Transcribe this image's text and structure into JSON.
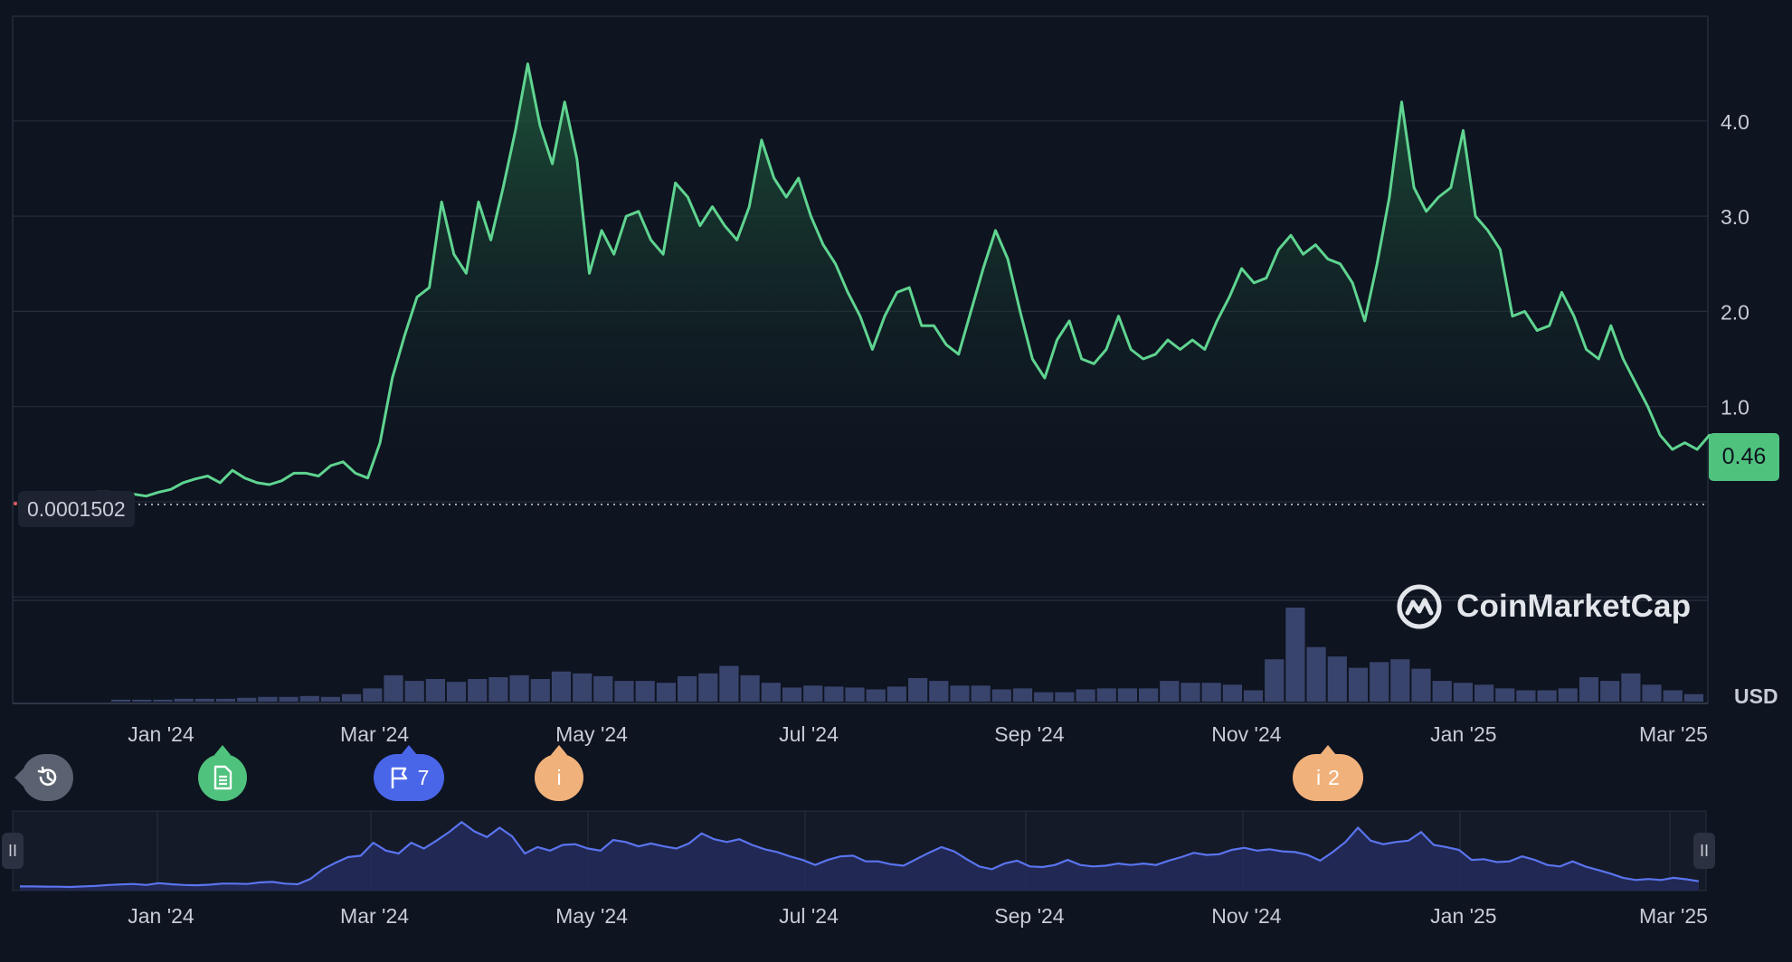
{
  "chart_data": {
    "type": "area",
    "x_tick_labels": [
      "Jan '24",
      "Mar '24",
      "May '24",
      "Jul '24",
      "Sep '24",
      "Nov '24",
      "Jan '25",
      "Mar '25"
    ],
    "y_tick_labels": [
      "1.0",
      "2.0",
      "3.0",
      "4.0"
    ],
    "y_ticks": [
      1,
      2,
      3,
      4
    ],
    "ylim": [
      -0.95,
      5.1
    ],
    "currency_label": "USD",
    "current_price_label": "0.46",
    "reference_price_label": "0.0001502",
    "grid": true,
    "series": [
      {
        "x_date_range": [
          "2023-12-14",
          "2025-03-18"
        ],
        "y": [
          0.1,
          0.1,
          0.09,
          0.08,
          0.06,
          0.1,
          0.13,
          0.2,
          0.24,
          0.27,
          0.2,
          0.33,
          0.25,
          0.2,
          0.18,
          0.22,
          0.3,
          0.3,
          0.27,
          0.38,
          0.42,
          0.3,
          0.25,
          0.62,
          1.3,
          1.75,
          2.15,
          2.25,
          3.15,
          2.6,
          2.4,
          3.15,
          2.75,
          3.3,
          3.9,
          4.6,
          3.95,
          3.55,
          4.2,
          3.6,
          2.4,
          2.85,
          2.6,
          3.0,
          3.05,
          2.75,
          2.6,
          3.35,
          3.2,
          2.9,
          3.1,
          2.9,
          2.75,
          3.1,
          3.8,
          3.4,
          3.2,
          3.4,
          3.0,
          2.7,
          2.5,
          2.2,
          1.95,
          1.6,
          1.95,
          2.2,
          2.25,
          1.85,
          1.85,
          1.65,
          1.55,
          2.0,
          2.45,
          2.85,
          2.55,
          2.0,
          1.5,
          1.3,
          1.7,
          1.9,
          1.5,
          1.45,
          1.6,
          1.95,
          1.6,
          1.5,
          1.55,
          1.7,
          1.6,
          1.7,
          1.6,
          1.9,
          2.15,
          2.45,
          2.3,
          2.35,
          2.65,
          2.8,
          2.6,
          2.7,
          2.55,
          2.5,
          2.3,
          1.9,
          2.5,
          3.2,
          4.2,
          3.3,
          3.05,
          3.2,
          3.3,
          3.9,
          3.0,
          2.85,
          2.65,
          1.95,
          2.0,
          1.8,
          1.85,
          2.2,
          1.95,
          1.6,
          1.5,
          1.85,
          1.5,
          1.25,
          1.0,
          0.7,
          0.55,
          0.62,
          0.55,
          0.7,
          0.6,
          0.46
        ]
      }
    ],
    "volume_relative": [
      0.02,
      0.02,
      0.02,
      0.03,
      0.03,
      0.03,
      0.04,
      0.05,
      0.05,
      0.06,
      0.05,
      0.08,
      0.14,
      0.28,
      0.22,
      0.24,
      0.21,
      0.24,
      0.26,
      0.28,
      0.24,
      0.32,
      0.3,
      0.27,
      0.22,
      0.22,
      0.2,
      0.27,
      0.3,
      0.38,
      0.28,
      0.2,
      0.15,
      0.17,
      0.16,
      0.15,
      0.13,
      0.16,
      0.25,
      0.22,
      0.17,
      0.17,
      0.13,
      0.14,
      0.1,
      0.1,
      0.13,
      0.14,
      0.14,
      0.14,
      0.22,
      0.2,
      0.2,
      0.18,
      0.12,
      0.45,
      1.0,
      0.58,
      0.48,
      0.36,
      0.42,
      0.45,
      0.35,
      0.22,
      0.2,
      0.18,
      0.14,
      0.12,
      0.12,
      0.14,
      0.26,
      0.22,
      0.3,
      0.18,
      0.12,
      0.08
    ],
    "navigator_x_tick_labels": [
      "Jan '24",
      "Mar '24",
      "May '24",
      "Jul '24",
      "Sep '24",
      "Nov '24",
      "Jan '25",
      "Mar '25"
    ]
  },
  "brand": {
    "name": "CoinMarketCap"
  },
  "events": {
    "flag_count": "7",
    "info_count": "2",
    "info_symbol": "i"
  },
  "navigator": {
    "handle_glyph": "II"
  },
  "colors": {
    "line": "#5fd490",
    "area_top": "#1f5a3c",
    "background": "#0e1420",
    "grid": "#262d3b",
    "volume": "#3c4772",
    "navigator_line": "#5a74ee",
    "navigator_fill": "#232c5c"
  }
}
